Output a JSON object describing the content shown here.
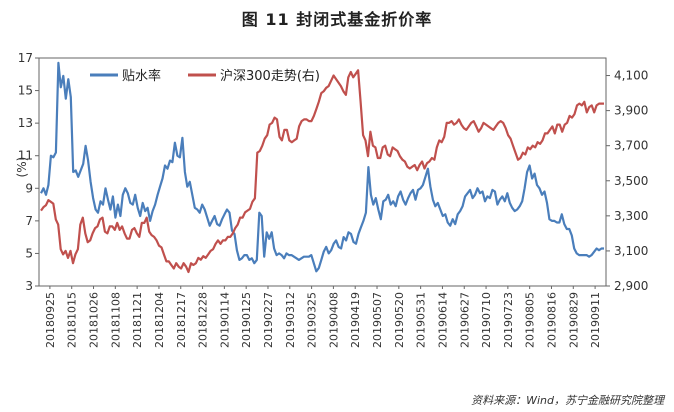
{
  "title": "图 11  封闭式基金折价率",
  "source": "资料来源：Wind，苏宁金融研究院整理",
  "chart_data": {
    "type": "line",
    "ylabel": "(%)",
    "ylim_left": [
      3,
      17
    ],
    "yticks_left": [
      "3",
      "5",
      "7",
      "9",
      "11",
      "13",
      "15",
      "17"
    ],
    "ylim_right": [
      2900,
      4200
    ],
    "yticks_right": [
      "2,900",
      "3,100",
      "3,300",
      "3,500",
      "3,700",
      "3,900",
      "4,100"
    ],
    "x_ticks": [
      "20180925",
      "20181015",
      "20181026",
      "20181108",
      "20181121",
      "20181204",
      "20181217",
      "20181228",
      "20190114",
      "20190125",
      "20190227",
      "20190312",
      "20190325",
      "20190408",
      "20190419",
      "20190507",
      "20190520",
      "20190531",
      "20190614",
      "20190627",
      "20190710",
      "20190723",
      "20190805",
      "20190816",
      "20190829",
      "20190911"
    ],
    "grid": false,
    "legend_position": "top",
    "series": [
      {
        "name": "贴水率",
        "axis": "left",
        "color": "#4a7ebb",
        "values": [
          8.7,
          9.0,
          8.6,
          9.2,
          11.0,
          10.9,
          11.2,
          16.7,
          15.2,
          15.9,
          14.5,
          15.7,
          14.6,
          10.0,
          10.1,
          9.7,
          10.1,
          10.5,
          11.6,
          10.7,
          9.4,
          8.4,
          7.7,
          7.5,
          8.2,
          8.0,
          9.0,
          8.3,
          7.7,
          8.5,
          7.2,
          8.0,
          7.3,
          8.6,
          9.0,
          8.7,
          8.1,
          8.0,
          8.6,
          7.8,
          7.3,
          8.1,
          7.6,
          7.8,
          7.0,
          7.6,
          8.0,
          8.6,
          9.1,
          9.6,
          10.4,
          10.2,
          10.7,
          10.6,
          11.8,
          11.0,
          10.9,
          12.1,
          10.0,
          9.1,
          9.4,
          8.6,
          7.8,
          7.7,
          7.5,
          8.0,
          7.7,
          7.2,
          6.7,
          7.0,
          7.3,
          6.8,
          6.7,
          7.1,
          7.4,
          7.7,
          7.5,
          6.4,
          6.2,
          5.2,
          4.6,
          4.7,
          4.9,
          4.9,
          4.6,
          4.7,
          4.4,
          4.6,
          7.5,
          7.3,
          4.8,
          6.3,
          5.9,
          6.3,
          5.3,
          4.9,
          5.0,
          4.9,
          4.7,
          5.0,
          4.9,
          4.9,
          4.8,
          4.7,
          4.6,
          4.7,
          4.8,
          4.8,
          4.8,
          4.9,
          4.4,
          3.9,
          4.1,
          4.6,
          5.1,
          5.4,
          5.0,
          5.2,
          5.6,
          5.8,
          5.4,
          5.3,
          6.0,
          5.8,
          6.3,
          6.2,
          5.7,
          5.6,
          6.2,
          6.6,
          7.0,
          7.5,
          10.3,
          8.6,
          8.0,
          8.4,
          7.7,
          7.1,
          8.2,
          8.3,
          8.6,
          8.0,
          8.2,
          7.9,
          8.5,
          8.8,
          8.3,
          8.0,
          8.4,
          8.7,
          8.9,
          8.3,
          8.9,
          9.0,
          9.2,
          9.7,
          10.2,
          9.1,
          8.3,
          7.9,
          8.1,
          7.7,
          7.3,
          7.4,
          6.9,
          6.7,
          7.1,
          6.8,
          7.4,
          7.6,
          7.9,
          8.5,
          8.7,
          8.9,
          8.4,
          8.6,
          9.0,
          8.7,
          8.8,
          8.2,
          8.5,
          8.4,
          8.9,
          8.8,
          8.0,
          8.3,
          8.5,
          8.2,
          8.7,
          8.1,
          7.8,
          7.6,
          7.7,
          7.9,
          8.2,
          9.0,
          10.0,
          10.4,
          9.6,
          9.9,
          9.2,
          9.0,
          8.6,
          8.8,
          8.1,
          7.1,
          7.0,
          7.0,
          6.9,
          6.9,
          7.4,
          6.8,
          6.5,
          6.5,
          6.1,
          5.3,
          5.0,
          4.9,
          4.9,
          4.9,
          4.9,
          4.8,
          4.9,
          5.1,
          5.3,
          5.2,
          5.3,
          5.3
        ]
      },
      {
        "name": "沪深300走势(右)",
        "axis": "right",
        "color": "#c0504d",
        "values": [
          3330,
          3350,
          3360,
          3390,
          3380,
          3370,
          3280,
          3250,
          3110,
          3080,
          3100,
          3060,
          3100,
          3030,
          3080,
          3110,
          3250,
          3290,
          3200,
          3150,
          3160,
          3200,
          3230,
          3240,
          3280,
          3290,
          3210,
          3200,
          3240,
          3240,
          3220,
          3260,
          3220,
          3240,
          3200,
          3170,
          3170,
          3220,
          3230,
          3200,
          3180,
          3260,
          3260,
          3290,
          3210,
          3190,
          3180,
          3160,
          3130,
          3120,
          3080,
          3040,
          3040,
          3020,
          3000,
          3030,
          3010,
          3000,
          3030,
          3010,
          2980,
          3030,
          3020,
          3030,
          3060,
          3050,
          3070,
          3060,
          3080,
          3100,
          3110,
          3140,
          3160,
          3140,
          3160,
          3160,
          3180,
          3180,
          3200,
          3230,
          3250,
          3290,
          3290,
          3320,
          3330,
          3340,
          3380,
          3400,
          3660,
          3670,
          3700,
          3740,
          3760,
          3820,
          3830,
          3860,
          3850,
          3750,
          3730,
          3790,
          3790,
          3730,
          3720,
          3730,
          3740,
          3810,
          3840,
          3850,
          3850,
          3840,
          3840,
          3870,
          3910,
          3950,
          4000,
          4010,
          4030,
          4040,
          4070,
          4100,
          4080,
          4060,
          4040,
          4010,
          3990,
          4090,
          4120,
          4090,
          4110,
          4130,
          3950,
          3760,
          3730,
          3640,
          3780,
          3700,
          3690,
          3630,
          3630,
          3690,
          3700,
          3650,
          3640,
          3690,
          3680,
          3670,
          3640,
          3620,
          3610,
          3580,
          3570,
          3580,
          3590,
          3560,
          3590,
          3610,
          3570,
          3600,
          3610,
          3630,
          3620,
          3690,
          3730,
          3720,
          3750,
          3830,
          3830,
          3840,
          3820,
          3830,
          3850,
          3820,
          3800,
          3790,
          3810,
          3830,
          3840,
          3810,
          3780,
          3800,
          3830,
          3820,
          3810,
          3800,
          3790,
          3810,
          3830,
          3840,
          3830,
          3800,
          3760,
          3740,
          3700,
          3660,
          3620,
          3630,
          3660,
          3650,
          3690,
          3680,
          3700,
          3690,
          3720,
          3710,
          3730,
          3770,
          3770,
          3790,
          3810,
          3770,
          3820,
          3820,
          3780,
          3820,
          3830,
          3870,
          3860,
          3880,
          3930,
          3940,
          3930,
          3950,
          3890,
          3920,
          3930,
          3890,
          3930,
          3940,
          3940,
          3940
        ]
      }
    ]
  }
}
